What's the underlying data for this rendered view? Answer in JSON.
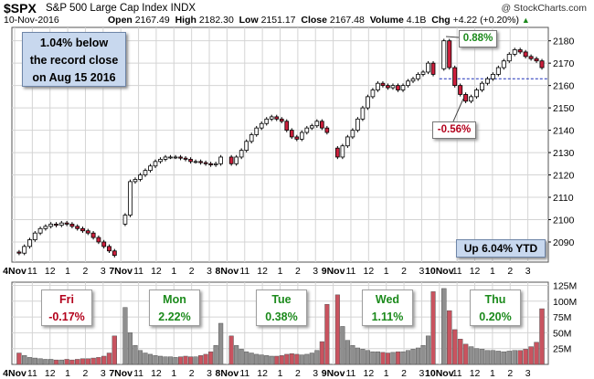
{
  "header": {
    "symbol": "$SPX",
    "description": "S&P 500 Large Cap Index  INDX",
    "watermark": "@ StockCharts.com",
    "date": "10-Nov-2016",
    "open_label": "Open",
    "open": "2167.49",
    "high_label": "High",
    "high": "2182.30",
    "low_label": "Low",
    "low": "2151.17",
    "close_label": "Close",
    "close": "2167.48",
    "volume_label": "Volume",
    "volume": "4.1B",
    "chg_label": "Chg",
    "chg": "+4.22 (+0.20%)",
    "chg_icon": "triangle-up-icon"
  },
  "annotations": {
    "record_note": [
      "1.04% below",
      "the record close",
      "on Aug 15 2016"
    ],
    "ytd": "Up 6.04% YTD",
    "high_callout": "0.88%",
    "low_callout": "-0.56%",
    "days": [
      {
        "day": "Fri",
        "change": "-0.17%",
        "dir": "down"
      },
      {
        "day": "Mon",
        "change": "2.22%",
        "dir": "up"
      },
      {
        "day": "Tue",
        "change": "0.38%",
        "dir": "up"
      },
      {
        "day": "Wed",
        "change": "1.11%",
        "dir": "up"
      },
      {
        "day": "Thu",
        "change": "0.20%",
        "dir": "up"
      }
    ]
  },
  "colors": {
    "up": "#ffffff",
    "down": "#cc1f3c",
    "wick": "#000000",
    "vol_up": "#8f8f8f",
    "vol_down": "#c9535f",
    "grid": "#d4d4d4",
    "record_line": "#1a2db8",
    "frame": "#555555"
  },
  "chart_data": {
    "type": "candlestick",
    "price_axis": {
      "ticks": [
        2090,
        2100,
        2110,
        2120,
        2130,
        2140,
        2150,
        2160,
        2170,
        2180
      ],
      "ylim": [
        2081,
        2186
      ]
    },
    "volume_axis": {
      "ticks": [
        "25M",
        "50M",
        "75M",
        "100M",
        "125M"
      ],
      "tick_values": [
        25,
        50,
        75,
        100,
        125
      ],
      "ylim": [
        0,
        130
      ],
      "unit": "M"
    },
    "x_tick_labels": [
      "4Nov",
      "11",
      "12",
      "1",
      "2",
      "3",
      "7Nov",
      "11",
      "12",
      "1",
      "2",
      "3",
      "8Nov",
      "11",
      "12",
      "1",
      "2",
      "3",
      "9Nov",
      "11",
      "12",
      "1",
      "2",
      "3",
      "10Nov",
      "11",
      "12",
      "1",
      "2",
      "3"
    ],
    "record_close": 2163,
    "days": [
      {
        "label": "4Nov",
        "o": 2085.5,
        "c": 2084,
        "path": [
          2085,
          2088,
          2091,
          2094,
          2096,
          2097,
          2098,
          2097.5,
          2098.5,
          2098,
          2097,
          2096,
          2095,
          2094,
          2092,
          2090,
          2088,
          2086,
          2084
        ],
        "vol": [
          18,
          14,
          11,
          10,
          9,
          8,
          8,
          7,
          7,
          8,
          7,
          8,
          9,
          9,
          10,
          11,
          13,
          18,
          45
        ]
      },
      {
        "label": "7Nov",
        "o": 2098,
        "c": 2128,
        "path": [
          2102,
          2117,
          2118,
          2120,
          2122,
          2124,
          2126,
          2127,
          2128,
          2128,
          2128,
          2127.5,
          2127,
          2126,
          2126,
          2125.5,
          2125,
          2124.5,
          2125,
          2128
        ],
        "vol": [
          90,
          50,
          30,
          22,
          18,
          16,
          14,
          13,
          12,
          12,
          11,
          12,
          13,
          12,
          12,
          14,
          16,
          20,
          30,
          65
        ]
      },
      {
        "label": "8Nov",
        "o": 2128,
        "c": 2139.5,
        "path": [
          2125,
          2128,
          2131,
          2135,
          2138,
          2141,
          2143,
          2145,
          2146,
          2145,
          2144,
          2140,
          2137,
          2136,
          2139,
          2141,
          2142,
          2144,
          2141,
          2139
        ],
        "vol": [
          45,
          30,
          24,
          20,
          18,
          16,
          15,
          14,
          13,
          13,
          14,
          16,
          17,
          16,
          15,
          16,
          18,
          22,
          36,
          95
        ]
      },
      {
        "label": "9Nov",
        "o": 2132,
        "c": 2163.5,
        "path": [
          2128,
          2133,
          2137,
          2140,
          2145,
          2150,
          2155,
          2158,
          2161,
          2160,
          2159,
          2160,
          2158,
          2160,
          2162,
          2163,
          2165,
          2166,
          2170,
          2165
        ],
        "vol": [
          110,
          60,
          38,
          30,
          26,
          24,
          22,
          20,
          20,
          19,
          18,
          19,
          20,
          20,
          22,
          24,
          26,
          30,
          45,
          115
        ]
      },
      {
        "label": "10Nov",
        "o": 2167.5,
        "c": 2167.5,
        "path": [
          2180,
          2168,
          2160,
          2156,
          2153,
          2155,
          2158,
          2161,
          2163,
          2165,
          2168,
          2171,
          2174,
          2176,
          2175,
          2173,
          2172,
          2171,
          2168
        ],
        "vol": [
          120,
          85,
          55,
          40,
          32,
          28,
          25,
          24,
          22,
          22,
          21,
          20,
          21,
          22,
          22,
          24,
          28,
          35,
          88
        ]
      }
    ]
  }
}
